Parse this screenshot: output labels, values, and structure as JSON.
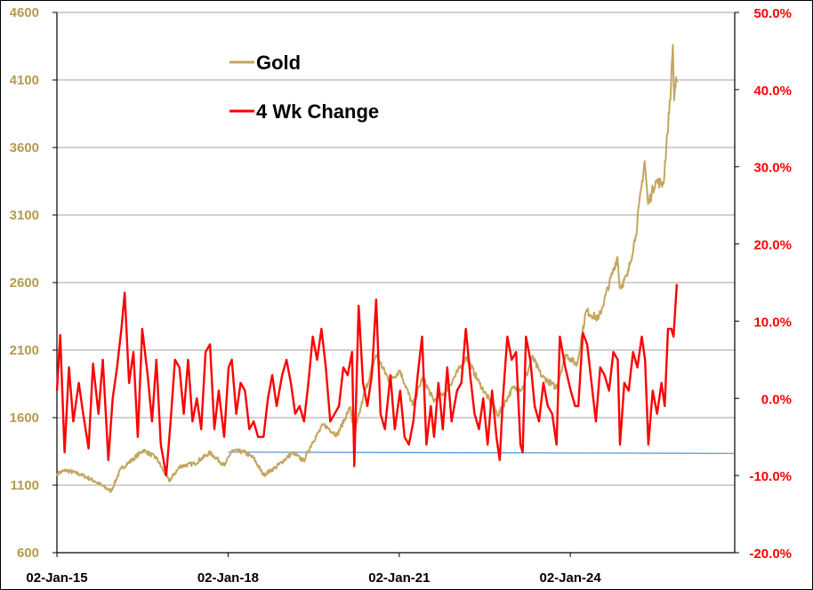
{
  "colors": {
    "gold": "#C3A65E",
    "gold_axis": "#B39B4E",
    "change": "#FF0000",
    "flat_line": "#4A90D9",
    "grid": "#A0A0A0"
  },
  "chart_data": {
    "type": "line",
    "grid": true,
    "legend_position": "top-left",
    "legend": [
      {
        "label": "Gold",
        "color": "#C3A65E"
      },
      {
        "label": "4 Wk Change",
        "color": "#FF0000"
      }
    ],
    "x_axis": {
      "range": [
        "2015-01-02",
        "2026-11-20"
      ],
      "tick_labels": [
        "02-Jan-15",
        "02-Jan-18",
        "02-Jan-21",
        "02-Jan-24"
      ],
      "tick_dates": [
        "2015-01-02",
        "2018-01-02",
        "2021-01-02",
        "2024-01-02"
      ]
    },
    "y_left": {
      "range": [
        600,
        4600
      ],
      "tick_values": [
        600,
        1100,
        1600,
        2100,
        2600,
        3100,
        3600,
        4100,
        4600
      ],
      "tick_labels": [
        "600",
        "1100",
        "1600",
        "2100",
        "2600",
        "3100",
        "3600",
        "4100",
        "4600"
      ]
    },
    "y_right": {
      "range": [
        -0.2,
        0.5
      ],
      "tick_values": [
        -0.2,
        -0.1,
        0.0,
        0.1,
        0.2,
        0.3,
        0.4,
        0.5
      ],
      "tick_labels": [
        "-20.0%",
        "-10.0%",
        "0.0%",
        "10.0%",
        "20.0%",
        "30.0%",
        "40.0%",
        "50.0%"
      ]
    },
    "series": [
      {
        "name": "Gold",
        "axis": "left",
        "points": [
          [
            "2015-01-02",
            1186
          ],
          [
            "2015-03-01",
            1210
          ],
          [
            "2015-06-01",
            1180
          ],
          [
            "2015-09-01",
            1130
          ],
          [
            "2015-12-15",
            1055
          ],
          [
            "2016-02-15",
            1220
          ],
          [
            "2016-05-01",
            1290
          ],
          [
            "2016-07-08",
            1360
          ],
          [
            "2016-10-01",
            1300
          ],
          [
            "2016-12-20",
            1130
          ],
          [
            "2017-03-01",
            1240
          ],
          [
            "2017-06-01",
            1260
          ],
          [
            "2017-09-08",
            1340
          ],
          [
            "2017-12-12",
            1245
          ],
          [
            "2018-01-25",
            1355
          ],
          [
            "2018-04-15",
            1345
          ],
          [
            "2018-06-15",
            1300
          ],
          [
            "2018-08-16",
            1175
          ],
          [
            "2018-11-01",
            1230
          ],
          [
            "2019-02-20",
            1340
          ],
          [
            "2019-05-01",
            1280
          ],
          [
            "2019-06-25",
            1415
          ],
          [
            "2019-09-04",
            1550
          ],
          [
            "2019-12-01",
            1470
          ],
          [
            "2020-02-24",
            1680
          ],
          [
            "2020-03-19",
            1475
          ],
          [
            "2020-05-15",
            1740
          ],
          [
            "2020-08-06",
            2065
          ],
          [
            "2020-11-01",
            1870
          ],
          [
            "2021-01-06",
            1950
          ],
          [
            "2021-03-30",
            1690
          ],
          [
            "2021-06-01",
            1900
          ],
          [
            "2021-08-10",
            1725
          ],
          [
            "2021-11-01",
            1800
          ],
          [
            "2022-03-08",
            2050
          ],
          [
            "2022-06-01",
            1850
          ],
          [
            "2022-09-28",
            1620
          ],
          [
            "2022-12-30",
            1820
          ],
          [
            "2023-02-28",
            1810
          ],
          [
            "2023-05-04",
            2050
          ],
          [
            "2023-07-01",
            1910
          ],
          [
            "2023-10-05",
            1820
          ],
          [
            "2023-12-04",
            2070
          ],
          [
            "2024-02-14",
            1990
          ],
          [
            "2024-04-12",
            2390
          ],
          [
            "2024-07-01",
            2330
          ],
          [
            "2024-10-30",
            2790
          ],
          [
            "2024-11-14",
            2560
          ],
          [
            "2025-01-02",
            2650
          ],
          [
            "2025-02-24",
            2950
          ],
          [
            "2025-04-22",
            3500
          ],
          [
            "2025-05-14",
            3180
          ],
          [
            "2025-07-01",
            3350
          ],
          [
            "2025-08-20",
            3330
          ],
          [
            "2025-09-15",
            3700
          ],
          [
            "2025-10-08",
            4060
          ],
          [
            "2025-10-20",
            4360
          ],
          [
            "2025-10-28",
            3950
          ],
          [
            "2025-11-10",
            4120
          ],
          [
            "2025-11-14",
            4080
          ]
        ]
      },
      {
        "name": "4 Wk Change",
        "axis": "right",
        "points": [
          [
            "2015-01-02",
            0.01
          ],
          [
            "2015-01-23",
            0.082
          ],
          [
            "2015-02-20",
            -0.07
          ],
          [
            "2015-03-20",
            0.04
          ],
          [
            "2015-04-17",
            -0.03
          ],
          [
            "2015-05-22",
            0.02
          ],
          [
            "2015-06-19",
            -0.02
          ],
          [
            "2015-07-24",
            -0.065
          ],
          [
            "2015-08-21",
            0.045
          ],
          [
            "2015-09-25",
            -0.02
          ],
          [
            "2015-10-23",
            0.05
          ],
          [
            "2015-11-27",
            -0.08
          ],
          [
            "2015-12-25",
            0.0
          ],
          [
            "2016-01-22",
            0.04
          ],
          [
            "2016-02-19",
            0.09
          ],
          [
            "2016-03-11",
            0.137
          ],
          [
            "2016-04-08",
            0.02
          ],
          [
            "2016-05-06",
            0.06
          ],
          [
            "2016-06-03",
            -0.05
          ],
          [
            "2016-07-01",
            0.09
          ],
          [
            "2016-08-05",
            0.03
          ],
          [
            "2016-09-02",
            -0.03
          ],
          [
            "2016-09-30",
            0.05
          ],
          [
            "2016-10-28",
            -0.06
          ],
          [
            "2016-12-02",
            -0.1
          ],
          [
            "2016-12-30",
            -0.03
          ],
          [
            "2017-01-27",
            0.05
          ],
          [
            "2017-02-24",
            0.04
          ],
          [
            "2017-03-24",
            -0.02
          ],
          [
            "2017-04-21",
            0.05
          ],
          [
            "2017-05-19",
            -0.03
          ],
          [
            "2017-06-16",
            0.0
          ],
          [
            "2017-07-14",
            -0.04
          ],
          [
            "2017-08-11",
            0.06
          ],
          [
            "2017-09-08",
            0.07
          ],
          [
            "2017-10-06",
            -0.04
          ],
          [
            "2017-11-03",
            0.01
          ],
          [
            "2017-12-08",
            -0.05
          ],
          [
            "2018-01-05",
            0.04
          ],
          [
            "2018-01-26",
            0.05
          ],
          [
            "2018-02-23",
            -0.02
          ],
          [
            "2018-03-23",
            0.02
          ],
          [
            "2018-04-20",
            0.01
          ],
          [
            "2018-05-18",
            -0.04
          ],
          [
            "2018-06-15",
            -0.03
          ],
          [
            "2018-07-13",
            -0.05
          ],
          [
            "2018-08-17",
            -0.05
          ],
          [
            "2018-09-14",
            0.0
          ],
          [
            "2018-10-12",
            0.03
          ],
          [
            "2018-11-09",
            -0.01
          ],
          [
            "2018-12-14",
            0.03
          ],
          [
            "2019-01-11",
            0.05
          ],
          [
            "2019-02-08",
            0.02
          ],
          [
            "2019-03-08",
            -0.02
          ],
          [
            "2019-04-05",
            -0.01
          ],
          [
            "2019-05-03",
            -0.03
          ],
          [
            "2019-05-31",
            0.02
          ],
          [
            "2019-06-28",
            0.08
          ],
          [
            "2019-07-26",
            0.05
          ],
          [
            "2019-08-23",
            0.09
          ],
          [
            "2019-09-20",
            0.04
          ],
          [
            "2019-10-18",
            -0.03
          ],
          [
            "2019-11-15",
            -0.02
          ],
          [
            "2019-12-13",
            -0.01
          ],
          [
            "2020-01-10",
            0.04
          ],
          [
            "2020-02-07",
            0.03
          ],
          [
            "2020-03-06",
            0.06
          ],
          [
            "2020-03-20",
            -0.088
          ],
          [
            "2020-04-17",
            0.12
          ],
          [
            "2020-05-15",
            0.02
          ],
          [
            "2020-06-12",
            -0.01
          ],
          [
            "2020-07-10",
            0.03
          ],
          [
            "2020-08-07",
            0.128
          ],
          [
            "2020-09-04",
            -0.02
          ],
          [
            "2020-10-02",
            -0.04
          ],
          [
            "2020-11-06",
            0.03
          ],
          [
            "2020-12-04",
            -0.04
          ],
          [
            "2021-01-08",
            0.01
          ],
          [
            "2021-02-05",
            -0.05
          ],
          [
            "2021-03-05",
            -0.06
          ],
          [
            "2021-04-02",
            -0.03
          ],
          [
            "2021-04-30",
            0.03
          ],
          [
            "2021-05-28",
            0.08
          ],
          [
            "2021-06-25",
            -0.06
          ],
          [
            "2021-07-23",
            -0.01
          ],
          [
            "2021-08-13",
            -0.05
          ],
          [
            "2021-09-10",
            0.02
          ],
          [
            "2021-10-08",
            -0.04
          ],
          [
            "2021-11-05",
            0.04
          ],
          [
            "2021-12-03",
            -0.03
          ],
          [
            "2022-01-07",
            0.01
          ],
          [
            "2022-02-04",
            0.02
          ],
          [
            "2022-03-04",
            0.09
          ],
          [
            "2022-04-01",
            0.03
          ],
          [
            "2022-04-29",
            -0.02
          ],
          [
            "2022-05-27",
            -0.04
          ],
          [
            "2022-06-24",
            0.0
          ],
          [
            "2022-07-22",
            -0.06
          ],
          [
            "2022-08-19",
            0.01
          ],
          [
            "2022-09-16",
            -0.05
          ],
          [
            "2022-10-07",
            -0.08
          ],
          [
            "2022-10-28",
            0.0
          ],
          [
            "2022-11-25",
            0.08
          ],
          [
            "2022-12-23",
            0.05
          ],
          [
            "2023-01-20",
            0.06
          ],
          [
            "2023-02-17",
            -0.06
          ],
          [
            "2023-03-03",
            -0.07
          ],
          [
            "2023-03-24",
            0.08
          ],
          [
            "2023-04-21",
            0.05
          ],
          [
            "2023-05-19",
            -0.01
          ],
          [
            "2023-06-16",
            -0.03
          ],
          [
            "2023-07-14",
            0.02
          ],
          [
            "2023-08-11",
            -0.01
          ],
          [
            "2023-09-08",
            -0.02
          ],
          [
            "2023-10-06",
            -0.06
          ],
          [
            "2023-10-27",
            0.08
          ],
          [
            "2023-12-01",
            0.04
          ],
          [
            "2024-01-05",
            0.01
          ],
          [
            "2024-02-02",
            -0.01
          ],
          [
            "2024-02-23",
            -0.01
          ],
          [
            "2024-03-22",
            0.085
          ],
          [
            "2024-04-19",
            0.07
          ],
          [
            "2024-05-17",
            0.02
          ],
          [
            "2024-06-14",
            -0.03
          ],
          [
            "2024-07-12",
            0.04
          ],
          [
            "2024-08-09",
            0.03
          ],
          [
            "2024-09-06",
            0.01
          ],
          [
            "2024-10-04",
            0.06
          ],
          [
            "2024-11-01",
            0.05
          ],
          [
            "2024-11-15",
            -0.06
          ],
          [
            "2024-12-13",
            0.02
          ],
          [
            "2025-01-10",
            0.01
          ],
          [
            "2025-02-07",
            0.06
          ],
          [
            "2025-03-07",
            0.04
          ],
          [
            "2025-04-04",
            0.08
          ],
          [
            "2025-04-25",
            0.05
          ],
          [
            "2025-05-16",
            -0.06
          ],
          [
            "2025-06-13",
            0.01
          ],
          [
            "2025-07-11",
            -0.02
          ],
          [
            "2025-08-08",
            0.02
          ],
          [
            "2025-08-29",
            -0.01
          ],
          [
            "2025-09-19",
            0.09
          ],
          [
            "2025-10-10",
            0.09
          ],
          [
            "2025-10-24",
            0.08
          ],
          [
            "2025-11-14",
            0.148
          ]
        ]
      },
      {
        "name": "",
        "axis": "left",
        "points": [
          [
            "2018-01-02",
            1345
          ],
          [
            "2026-11-20",
            1335
          ]
        ]
      }
    ]
  }
}
